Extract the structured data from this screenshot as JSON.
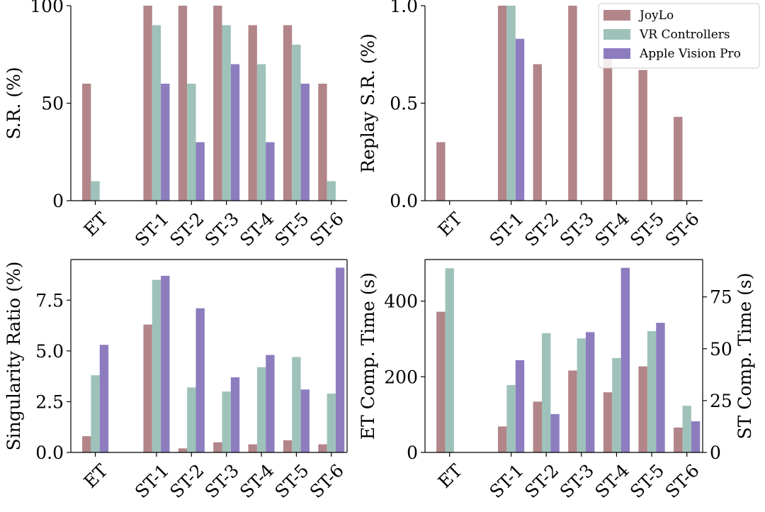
{
  "colors": {
    "joylo": "#b28588",
    "vr": "#9ec2ba",
    "avp": "#8d7dbf"
  },
  "legend": {
    "items": [
      {
        "label": "JoyLo",
        "color_key": "joylo"
      },
      {
        "label": "VR Controllers",
        "color_key": "vr"
      },
      {
        "label": "Apple Vision Pro",
        "color_key": "avp"
      }
    ]
  },
  "chart_data": [
    {
      "type": "bar",
      "ylabel": "S.R. (%)",
      "categories": [
        "ET",
        "ST-1",
        "ST-2",
        "ST-3",
        "ST-4",
        "ST-5",
        "ST-6"
      ],
      "ylim": [
        0,
        100
      ],
      "yticks": [
        "0",
        "50",
        "100"
      ],
      "ytick_values": [
        0,
        50,
        100
      ],
      "series": [
        {
          "name": "JoyLo",
          "values": [
            60,
            100,
            100,
            100,
            90,
            90,
            60
          ]
        },
        {
          "name": "VR Controllers",
          "values": [
            10,
            90,
            60,
            90,
            70,
            80,
            10
          ]
        },
        {
          "name": "Apple Vision Pro",
          "values": [
            0,
            60,
            30,
            70,
            30,
            60,
            0
          ]
        }
      ]
    },
    {
      "type": "bar",
      "ylabel": "Replay S.R. (%)",
      "categories": [
        "ET",
        "ST-1",
        "ST-2",
        "ST-3",
        "ST-4",
        "ST-5",
        "ST-6"
      ],
      "ylim": [
        0,
        1.0
      ],
      "yticks": [
        "0.0",
        "0.5",
        "1.0"
      ],
      "ytick_values": [
        0,
        0.5,
        1.0
      ],
      "series": [
        {
          "name": "JoyLo",
          "values": [
            0.3,
            1.0,
            0.7,
            1.0,
            0.78,
            0.67,
            0.43
          ]
        },
        {
          "name": "VR Controllers",
          "values": [
            0,
            1.0,
            0,
            0,
            0,
            0,
            0
          ]
        },
        {
          "name": "Apple Vision Pro",
          "values": [
            0,
            0.83,
            0,
            0,
            0,
            0,
            0
          ]
        }
      ]
    },
    {
      "type": "bar",
      "ylabel": "Singularity Ratio (%)",
      "categories": [
        "ET",
        "ST-1",
        "ST-2",
        "ST-3",
        "ST-4",
        "ST-5",
        "ST-6"
      ],
      "ylim": [
        0,
        9.5
      ],
      "yticks": [
        "0.0",
        "2.5",
        "5.0",
        "7.5"
      ],
      "ytick_values": [
        0,
        2.5,
        5.0,
        7.5
      ],
      "series": [
        {
          "name": "JoyLo",
          "values": [
            0.8,
            6.3,
            0.2,
            0.5,
            0.4,
            0.6,
            0.4
          ]
        },
        {
          "name": "VR Controllers",
          "values": [
            3.8,
            8.5,
            3.2,
            3.0,
            4.2,
            4.7,
            2.9
          ]
        },
        {
          "name": "Apple Vision Pro",
          "values": [
            5.3,
            8.7,
            7.1,
            3.7,
            4.8,
            3.1,
            9.1
          ]
        }
      ]
    },
    {
      "type": "bar",
      "ylabel": "ET Comp. Time (s)",
      "ylabel_right": "ST Comp. Time (s)",
      "categories": [
        "ET",
        "ST-1",
        "ST-2",
        "ST-3",
        "ST-4",
        "ST-5",
        "ST-6"
      ],
      "ylim": [
        0,
        510
      ],
      "yticks": [
        "0",
        "200",
        "400"
      ],
      "ytick_values": [
        0,
        200,
        400
      ],
      "ylim_right": [
        0,
        93
      ],
      "yticks_right": [
        "0",
        "25",
        "50",
        "75"
      ],
      "ytick_values_right": [
        0,
        25,
        50,
        75
      ],
      "series": [
        {
          "name": "JoyLo",
          "values": [
            372,
            12.5,
            24.5,
            39.5,
            29,
            41.5,
            12
          ]
        },
        {
          "name": "VR Controllers",
          "values": [
            487,
            32.5,
            57.5,
            55,
            45.5,
            58.5,
            22.5
          ]
        },
        {
          "name": "Apple Vision Pro",
          "values": [
            0,
            44.5,
            18.5,
            58,
            89,
            62.5,
            15
          ]
        }
      ]
    }
  ]
}
